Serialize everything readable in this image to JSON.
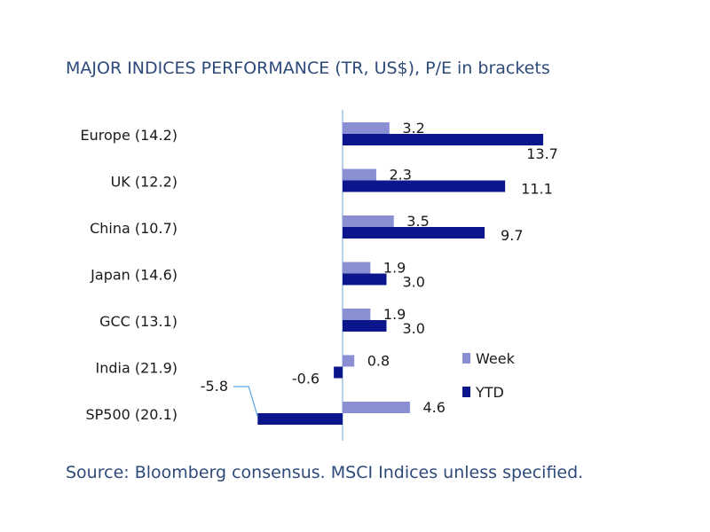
{
  "title": "MAJOR INDICES PERFORMANCE (TR, US$), P/E in brackets",
  "source": "Source: Bloomberg consensus. MSCI Indices unless specified.",
  "colors": {
    "week": "#8a8fd4",
    "ytd": "#0b168c",
    "axis": "#9dc3e6",
    "leader": "#5ba3e0"
  },
  "chart_data": {
    "type": "bar",
    "orientation": "horizontal",
    "categories": [
      "Europe (14.2)",
      "UK (12.2)",
      "China (10.7)",
      "Japan (14.6)",
      "GCC (13.1)",
      "India (21.9)",
      "SP500 (20.1)"
    ],
    "series": [
      {
        "name": "Week",
        "values": [
          3.2,
          2.3,
          3.5,
          1.9,
          1.9,
          0.8,
          4.6
        ]
      },
      {
        "name": "YTD",
        "values": [
          13.7,
          11.1,
          9.7,
          3.0,
          3.0,
          -0.6,
          -5.8
        ]
      }
    ],
    "value_labels": {
      "Week": [
        "3.2",
        "2.3",
        "3.5",
        "1.9",
        "1.9",
        "0.8",
        "4.6"
      ],
      "YTD": [
        "13.7",
        "11.1",
        "9.7",
        "3.0",
        "3.0",
        "-0.6",
        "-5.8"
      ]
    },
    "xlim": [
      -6,
      15
    ],
    "grid": false,
    "legend_position": "right"
  }
}
